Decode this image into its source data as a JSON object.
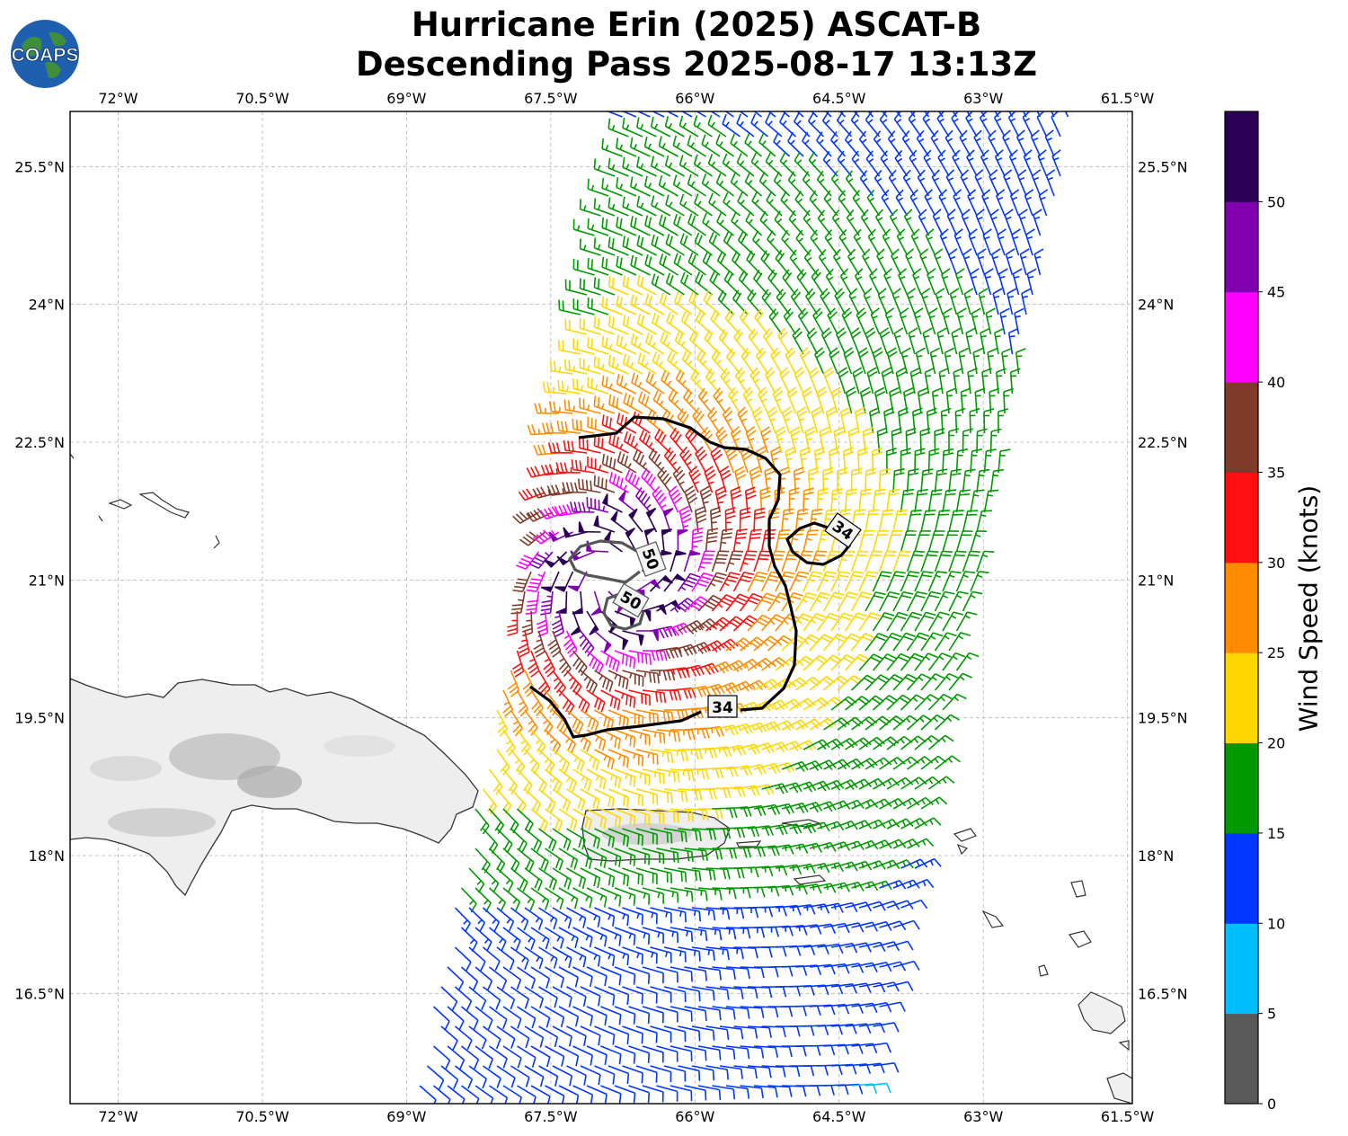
{
  "title": {
    "line1": "Hurricane Erin (2025) ASCAT-B",
    "line2": "Descending Pass 2025-08-17 13:13Z"
  },
  "logo": {
    "text": "COAPS",
    "icon": "globe-icon"
  },
  "map": {
    "lon_range": [
      -72.5,
      -61.45
    ],
    "lat_range": [
      15.3,
      26.1
    ],
    "lon_ticks": [
      "72°W",
      "70.5°W",
      "69°W",
      "67.5°W",
      "66°W",
      "64.5°W",
      "63°W",
      "61.5°W"
    ],
    "lat_ticks": [
      "25.5°N",
      "24°N",
      "22.5°N",
      "21°N",
      "19.5°N",
      "18°N",
      "16.5°N"
    ],
    "gridlines": true,
    "contours": [
      {
        "label": "34",
        "color": "#000000"
      },
      {
        "label": "34",
        "color": "#000000"
      },
      {
        "label": "50",
        "color": "#555555"
      },
      {
        "label": "50",
        "color": "#555555"
      }
    ],
    "wind_barbs": "ASCAT-B wind barbs around a cyclonic center near 21°N 67°W, colored by speed"
  },
  "colorbar": {
    "label": "Wind Speed (knots)",
    "ticks": [
      "0",
      "5",
      "10",
      "15",
      "20",
      "25",
      "30",
      "35",
      "40",
      "45",
      "50"
    ],
    "colors": [
      "#595959",
      "#00bfff",
      "#0036ff",
      "#009900",
      "#ffd700",
      "#ff8c00",
      "#ff0f0f",
      "#803a2a",
      "#ff00ff",
      "#8000b0",
      "#2b0055"
    ]
  }
}
